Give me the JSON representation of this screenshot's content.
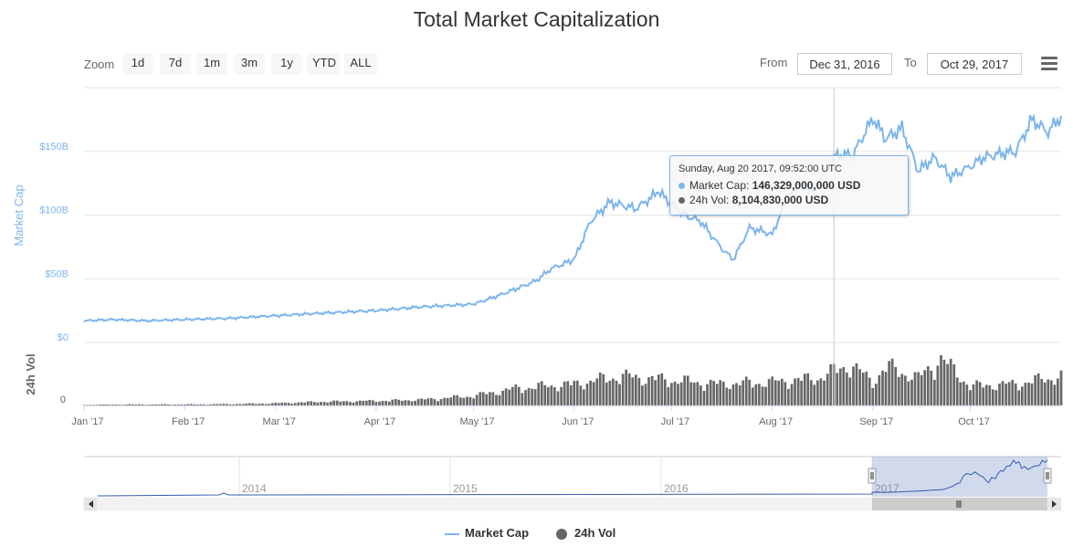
{
  "title": "Total Market Capitalization",
  "zoom": {
    "label": "Zoom",
    "buttons": [
      "1d",
      "7d",
      "1m",
      "3m",
      "1y",
      "YTD",
      "ALL"
    ]
  },
  "range": {
    "from_label": "From",
    "from_value": "Dec 31, 2016",
    "to_label": "To",
    "to_value": "Oct 29, 2017"
  },
  "menu_icon": "hamburger-menu-icon",
  "chart_data": {
    "type": "line",
    "series": [
      {
        "name": "Market Cap",
        "color": "#7cb5ec",
        "unit": "USD billions",
        "x": [
          "2017-01-01",
          "2017-01-10",
          "2017-01-20",
          "2017-02-01",
          "2017-02-15",
          "2017-03-01",
          "2017-03-15",
          "2017-04-01",
          "2017-04-15",
          "2017-05-01",
          "2017-05-10",
          "2017-05-20",
          "2017-05-25",
          "2017-06-01",
          "2017-06-06",
          "2017-06-12",
          "2017-06-20",
          "2017-06-27",
          "2017-07-05",
          "2017-07-10",
          "2017-07-16",
          "2017-07-20",
          "2017-07-25",
          "2017-08-01",
          "2017-08-05",
          "2017-08-10",
          "2017-08-14",
          "2017-08-20",
          "2017-08-26",
          "2017-09-01",
          "2017-09-05",
          "2017-09-10",
          "2017-09-15",
          "2017-09-20",
          "2017-09-25",
          "2017-10-01",
          "2017-10-05",
          "2017-10-10",
          "2017-10-15",
          "2017-10-20",
          "2017-10-25",
          "2017-10-29"
        ],
        "values": [
          17,
          18,
          17,
          18,
          19,
          21,
          23,
          25,
          28,
          30,
          38,
          48,
          58,
          65,
          95,
          110,
          105,
          118,
          100,
          95,
          75,
          65,
          90,
          85,
          110,
          125,
          120,
          146,
          148,
          176,
          160,
          168,
          135,
          145,
          130,
          138,
          145,
          148,
          150,
          175,
          165,
          178
        ]
      },
      {
        "name": "24h Vol",
        "color": "#666666",
        "unit": "USD billions",
        "x": [
          "2017-01-01",
          "2017-01-15",
          "2017-02-01",
          "2017-02-15",
          "2017-03-01",
          "2017-03-15",
          "2017-04-01",
          "2017-04-15",
          "2017-05-01",
          "2017-05-15",
          "2017-06-01",
          "2017-06-15",
          "2017-07-01",
          "2017-07-15",
          "2017-08-01",
          "2017-08-15",
          "2017-08-25",
          "2017-09-01",
          "2017-09-05",
          "2017-09-15",
          "2017-09-22",
          "2017-10-01",
          "2017-10-15",
          "2017-10-29"
        ],
        "values": [
          0.2,
          0.3,
          0.3,
          0.4,
          0.6,
          1.0,
          1.2,
          1.5,
          2.5,
          4.5,
          5.5,
          7.5,
          6.5,
          5.5,
          6.0,
          7.0,
          10.5,
          6.0,
          10.0,
          7.0,
          12.0,
          5.0,
          5.5,
          7.5
        ]
      }
    ],
    "x_ticks": [
      "Jan '17",
      "Feb '17",
      "Mar '17",
      "Apr '17",
      "May '17",
      "Jun '17",
      "Jul '17",
      "Aug '17",
      "Sep '17",
      "Oct '17"
    ],
    "y_axis": {
      "label": "Market Cap",
      "ticks": [
        "$0",
        "$50B",
        "$100B",
        "$150B"
      ],
      "range": [
        0,
        200
      ]
    },
    "y2_axis": {
      "label": "24h Vol",
      "ticks": [
        "0"
      ]
    },
    "grid": true,
    "legend_position": "bottom-center",
    "navigator": {
      "years": [
        "2014",
        "2015",
        "2016",
        "2017"
      ],
      "selected_range": [
        "2016-12-31",
        "2017-10-29"
      ]
    },
    "crosshair_date": "2017-08-20"
  },
  "tooltip": {
    "header": "Sunday, Aug 20 2017, 09:52:00 UTC",
    "rows": [
      {
        "label": "Market Cap:",
        "value": "146,329,000,000 USD",
        "color": "#7cb5ec"
      },
      {
        "label": "24h Vol:",
        "value": "8,104,830,000 USD",
        "color": "#666666"
      }
    ]
  },
  "legend": {
    "items": [
      {
        "label": "Market Cap",
        "color": "#7cb5ec"
      },
      {
        "label": "24h Vol",
        "color": "#666666"
      }
    ]
  }
}
